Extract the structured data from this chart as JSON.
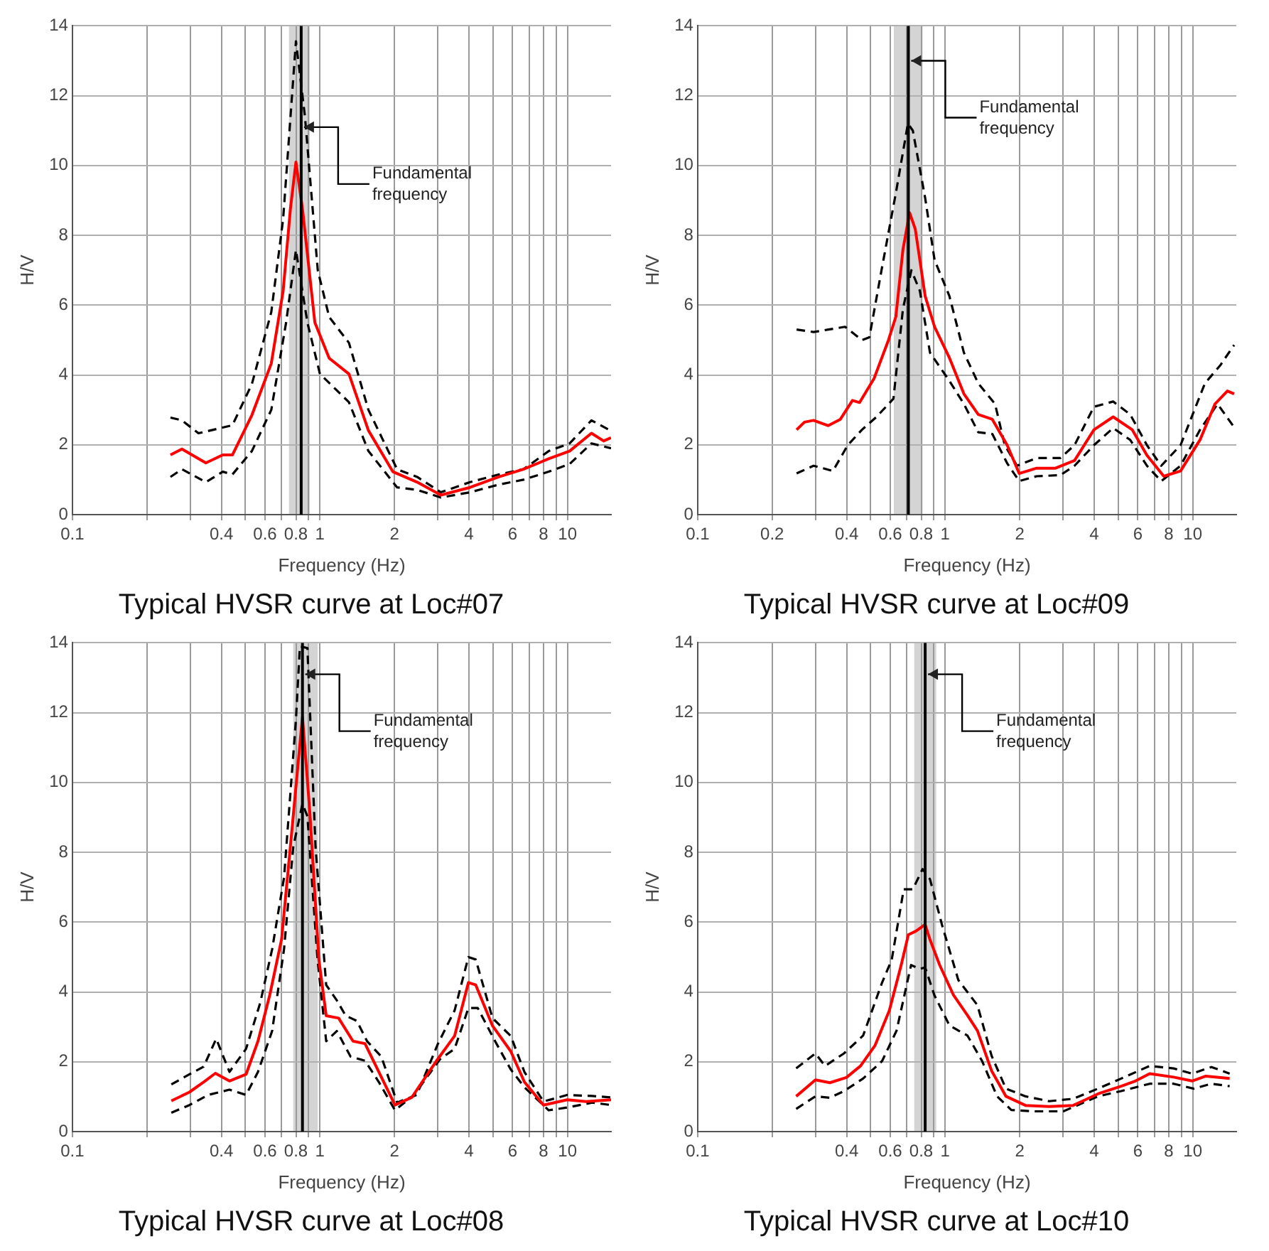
{
  "chart_data": [
    {
      "type": "line",
      "title": "Typical HVSR curve at Loc#07",
      "xlabel": "Frequency (Hz)",
      "ylabel": "H/V",
      "log": "x",
      "grid": true,
      "xlim": [
        0.1,
        15
      ],
      "ylim": [
        0,
        14
      ],
      "yticks": [
        0,
        2,
        4,
        6,
        8,
        10,
        12,
        14
      ],
      "xticks": [
        0.1,
        {
          "value": 0.2,
          "label": null
        },
        {
          "value": 0.3,
          "label": null
        },
        0.4,
        {
          "value": 0.5,
          "label": null
        },
        0.6,
        {
          "value": 0.7,
          "label": null
        },
        0.8,
        {
          "value": 0.9,
          "label": null
        },
        1,
        2,
        {
          "value": 3,
          "label": null
        },
        4,
        {
          "value": 5,
          "label": null
        },
        6,
        {
          "value": 7,
          "label": null
        },
        8,
        {
          "value": 9,
          "label": null
        },
        10
      ],
      "ref_lines": [
        {
          "axis": "x",
          "value": 0.84,
          "color": "#000000"
        }
      ],
      "bands": [
        {
          "axis": "x",
          "from": 0.75,
          "to": 0.91,
          "color": "#d4d4d4"
        }
      ],
      "annotations": [
        {
          "text": "Fundamental frequency",
          "x": 0.84,
          "y": 11.1
        }
      ],
      "series": [
        {
          "color": "#ff0000",
          "line_style": "solid",
          "x": [
            0.249,
            0.277,
            0.346,
            0.405,
            0.443,
            0.531,
            0.636,
            0.71,
            0.76,
            0.8,
            0.85,
            0.954,
            1.09,
            1.31,
            1.57,
            1.97,
            2.47,
            3.08,
            4.04,
            5.28,
            6.64,
            8.4,
            10.2,
            12.5,
            14,
            15
          ],
          "values": [
            1.71,
            1.88,
            1.48,
            1.71,
            1.71,
            2.85,
            4.33,
            6.4,
            8.76,
            10.1,
            8.76,
            5.5,
            4.48,
            4.03,
            2.41,
            1.23,
            0.93,
            0.56,
            0.78,
            1.08,
            1.3,
            1.6,
            1.82,
            2.33,
            2.11,
            2.2
          ]
        },
        {
          "color": "#000000",
          "line_style": "dashed",
          "x": [
            0.249,
            0.277,
            0.323,
            0.443,
            0.531,
            0.636,
            0.71,
            0.8,
            0.87,
            0.98,
            1.09,
            1.31,
            1.57,
            2.05,
            2.47,
            3.08,
            4.04,
            5.28,
            6.64,
            8.4,
            10.2,
            12.5,
            15
          ],
          "values": [
            2.78,
            2.7,
            2.33,
            2.56,
            3.74,
            5.8,
            8.46,
            13.56,
            11.4,
            7.0,
            5.66,
            4.92,
            3.0,
            1.3,
            1.08,
            0.64,
            0.93,
            1.15,
            1.3,
            1.82,
            2.04,
            2.7,
            2.4
          ]
        },
        {
          "color": "#000000",
          "line_style": "dashed",
          "x": [
            0.249,
            0.277,
            0.346,
            0.405,
            0.443,
            0.531,
            0.636,
            0.73,
            0.8,
            0.89,
            1.0,
            1.31,
            1.57,
            2.05,
            2.47,
            3.08,
            4.04,
            5.28,
            6.64,
            8.4,
            10.2,
            12.5,
            15
          ],
          "values": [
            1.08,
            1.3,
            0.93,
            1.23,
            1.15,
            1.82,
            3.0,
            5.5,
            7.58,
            5.5,
            4.03,
            3.22,
            1.82,
            0.78,
            0.71,
            0.49,
            0.64,
            0.86,
            1.0,
            1.23,
            1.45,
            2.04,
            1.9
          ]
        }
      ]
    },
    {
      "type": "line",
      "title": "Typical HVSR curve at Loc#09",
      "xlabel": "Frequency (Hz)",
      "ylabel": "H/V",
      "log": "x",
      "grid": true,
      "xlim": [
        0.1,
        15
      ],
      "ylim": [
        0,
        14
      ],
      "yticks": [
        0,
        2,
        4,
        6,
        8,
        10,
        12,
        14
      ],
      "xticks": [
        0.1,
        0.2,
        {
          "value": 0.3,
          "label": null
        },
        0.4,
        {
          "value": 0.5,
          "label": null
        },
        0.6,
        {
          "value": 0.7,
          "label": null
        },
        0.8,
        {
          "value": 0.9,
          "label": null
        },
        1,
        2,
        {
          "value": 3,
          "label": null
        },
        4,
        {
          "value": 5,
          "label": null
        },
        6,
        {
          "value": 7,
          "label": null
        },
        8,
        {
          "value": 9,
          "label": null
        },
        10
      ],
      "ref_lines": [
        {
          "axis": "x",
          "value": 0.71,
          "color": "#000000"
        }
      ],
      "bands": [
        {
          "axis": "x",
          "from": 0.62,
          "to": 0.81,
          "color": "#d4d4d4"
        }
      ],
      "annotations": [
        {
          "text": "Fundamental frequency",
          "x": 0.71,
          "y": 13
        }
      ],
      "series": [
        {
          "color": "#ff0000",
          "line_style": "solid",
          "x": [
            0.251,
            0.27,
            0.294,
            0.337,
            0.377,
            0.422,
            0.451,
            0.516,
            0.59,
            0.632,
            0.675,
            0.718,
            0.757,
            0.83,
            0.906,
            1.04,
            1.19,
            1.36,
            1.55,
            1.78,
            1.99,
            2.34,
            2.79,
            3.33,
            3.99,
            4.77,
            5.7,
            6.53,
            7.64,
            8.93,
            10.7,
            12.3,
            13.8,
            14.7
          ],
          "values": [
            2.43,
            2.65,
            2.7,
            2.55,
            2.73,
            3.27,
            3.21,
            3.9,
            5.0,
            5.67,
            7.59,
            8.65,
            8.18,
            6.26,
            5.38,
            4.49,
            3.46,
            2.87,
            2.73,
            1.99,
            1.18,
            1.33,
            1.33,
            1.55,
            2.43,
            2.8,
            2.43,
            1.7,
            1.1,
            1.25,
            2.14,
            3.17,
            3.54,
            3.46
          ]
        },
        {
          "color": "#000000",
          "line_style": "dashed",
          "x": [
            0.251,
            0.294,
            0.337,
            0.394,
            0.461,
            0.494,
            0.553,
            0.632,
            0.707,
            0.74,
            0.83,
            0.906,
            1.04,
            1.19,
            1.36,
            1.59,
            1.74,
            1.95,
            2.34,
            2.92,
            3.33,
            3.99,
            4.77,
            5.59,
            6.53,
            7.46,
            8.93,
            11.2,
            12.9,
            14.7
          ],
          "values": [
            5.3,
            5.23,
            5.3,
            5.38,
            5.0,
            5.08,
            7.0,
            9.21,
            11.2,
            11.0,
            9.07,
            7.29,
            6.26,
            4.64,
            3.76,
            3.17,
            1.99,
            1.4,
            1.62,
            1.62,
            1.99,
            3.09,
            3.24,
            2.87,
            1.99,
            1.4,
            1.99,
            3.76,
            4.27,
            4.86
          ]
        },
        {
          "color": "#000000",
          "line_style": "dashed",
          "x": [
            0.251,
            0.294,
            0.352,
            0.404,
            0.461,
            0.528,
            0.618,
            0.675,
            0.73,
            0.79,
            0.868,
            1.04,
            1.19,
            1.36,
            1.55,
            1.78,
            1.99,
            2.34,
            2.92,
            3.33,
            3.99,
            4.77,
            5.59,
            6.53,
            7.46,
            8.93,
            10.7,
            12.6,
            14.7
          ],
          "values": [
            1.18,
            1.4,
            1.25,
            1.99,
            2.43,
            2.8,
            3.32,
            5.89,
            7.0,
            6.41,
            4.64,
            3.83,
            3.17,
            2.36,
            2.31,
            1.47,
            0.96,
            1.1,
            1.13,
            1.4,
            1.99,
            2.48,
            2.14,
            1.4,
            0.96,
            1.4,
            2.43,
            3.17,
            2.5
          ]
        }
      ]
    },
    {
      "type": "line",
      "title": "Typical HVSR curve at Loc#08",
      "xlabel": "Frequency (Hz)",
      "ylabel": "H/V",
      "log": "x",
      "grid": true,
      "xlim": [
        0.1,
        15
      ],
      "ylim": [
        0,
        14
      ],
      "yticks": [
        0,
        2,
        4,
        6,
        8,
        10,
        12,
        14
      ],
      "xticks": [
        0.1,
        {
          "value": 0.2,
          "label": null
        },
        {
          "value": 0.3,
          "label": null
        },
        0.4,
        {
          "value": 0.5,
          "label": null
        },
        0.6,
        {
          "value": 0.7,
          "label": null
        },
        0.8,
        {
          "value": 0.9,
          "label": null
        },
        1,
        2,
        {
          "value": 3,
          "label": null
        },
        4,
        {
          "value": 5,
          "label": null
        },
        6,
        {
          "value": 7,
          "label": null
        },
        8,
        {
          "value": 9,
          "label": null
        },
        10
      ],
      "ref_lines": [
        {
          "axis": "x",
          "value": 0.85,
          "color": "#000000"
        }
      ],
      "bands": [
        {
          "axis": "x",
          "from": 0.78,
          "to": 0.98,
          "color": "#d4d4d4"
        }
      ],
      "annotations": [
        {
          "text": "Fundamental frequency",
          "x": 0.85,
          "y": 13.1
        }
      ],
      "series": [
        {
          "color": "#ff0000",
          "line_style": "solid",
          "x": [
            0.251,
            0.297,
            0.339,
            0.378,
            0.431,
            0.503,
            0.562,
            0.627,
            0.7,
            0.766,
            0.85,
            0.91,
            0.99,
            1.06,
            1.19,
            1.36,
            1.52,
            1.73,
            2.01,
            2.35,
            2.94,
            3.5,
            3.98,
            4.26,
            4.98,
            5.9,
            6.7,
            8.0,
            9.97,
            11.9,
            15
          ],
          "values": [
            0.88,
            1.13,
            1.42,
            1.67,
            1.45,
            1.64,
            2.59,
            3.91,
            5.51,
            8.44,
            11.88,
            9.17,
            4.93,
            3.32,
            3.25,
            2.59,
            2.52,
            1.71,
            0.76,
            0.98,
            2.0,
            2.74,
            4.27,
            4.2,
            3.03,
            2.3,
            1.42,
            0.76,
            0.91,
            0.86,
            0.91
          ]
        },
        {
          "color": "#000000",
          "line_style": "dashed",
          "x": [
            0.251,
            0.297,
            0.339,
            0.381,
            0.431,
            0.503,
            0.574,
            0.641,
            0.716,
            0.8,
            0.83,
            0.89,
            0.96,
            1.06,
            1.17,
            1.27,
            1.41,
            1.55,
            1.77,
            2.05,
            2.46,
            3.0,
            3.5,
            3.98,
            4.26,
            4.98,
            5.9,
            6.7,
            8.0,
            9.97,
            12.6,
            15
          ],
          "values": [
            1.35,
            1.64,
            1.86,
            2.66,
            1.71,
            2.37,
            3.69,
            5.22,
            7.27,
            11.8,
            13.9,
            13.85,
            8.15,
            4.2,
            3.76,
            3.32,
            3.17,
            2.59,
            2.15,
            0.83,
            1.05,
            2.52,
            3.47,
            5.0,
            4.93,
            3.25,
            2.74,
            1.71,
            0.86,
            1.05,
            1.02,
            0.98
          ]
        },
        {
          "color": "#000000",
          "line_style": "dashed",
          "x": [
            0.251,
            0.297,
            0.354,
            0.431,
            0.503,
            0.562,
            0.641,
            0.716,
            0.78,
            0.85,
            0.89,
            0.978,
            1.06,
            1.17,
            1.33,
            1.52,
            1.73,
            2.01,
            2.4,
            3.06,
            3.5,
            3.98,
            4.34,
            5.1,
            5.9,
            6.7,
            8.4,
            9.97,
            12.6,
            15
          ],
          "values": [
            0.54,
            0.76,
            1.05,
            1.2,
            1.05,
            1.71,
            2.88,
            5.22,
            8.15,
            9.39,
            9.03,
            4.93,
            2.59,
            2.88,
            2.15,
            2.03,
            1.42,
            0.61,
            1.05,
            2.08,
            2.37,
            3.54,
            3.54,
            2.59,
            1.78,
            1.27,
            0.61,
            0.69,
            0.83,
            0.76
          ]
        }
      ]
    },
    {
      "type": "line",
      "title": "Typical HVSR curve at Loc#10",
      "xlabel": "Frequency (Hz)",
      "ylabel": "H/V",
      "log": "x",
      "grid": true,
      "xlim": [
        0.1,
        15
      ],
      "ylim": [
        0,
        14
      ],
      "yticks": [
        0,
        2,
        4,
        6,
        8,
        10,
        12,
        14
      ],
      "xticks": [
        0.1,
        {
          "value": 0.2,
          "label": null
        },
        {
          "value": 0.3,
          "label": null
        },
        0.4,
        {
          "value": 0.5,
          "label": null
        },
        0.6,
        {
          "value": 0.7,
          "label": null
        },
        0.8,
        {
          "value": 0.9,
          "label": null
        },
        1,
        2,
        {
          "value": 3,
          "label": null
        },
        4,
        {
          "value": 5,
          "label": null
        },
        6,
        {
          "value": 7,
          "label": null
        },
        8,
        {
          "value": 9,
          "label": null
        },
        10
      ],
      "ref_lines": [
        {
          "axis": "x",
          "value": 0.83,
          "color": "#000000"
        }
      ],
      "bands": [
        {
          "axis": "x",
          "from": 0.75,
          "to": 0.92,
          "color": "#d4d4d4"
        }
      ],
      "annotations": [
        {
          "text": "Fundamental frequency",
          "x": 0.83,
          "y": 13.1
        }
      ],
      "series": [
        {
          "color": "#ff0000",
          "line_style": "solid",
          "x": [
            0.25,
            0.299,
            0.342,
            0.399,
            0.455,
            0.52,
            0.595,
            0.664,
            0.71,
            0.76,
            0.83,
            0.868,
            0.95,
            1.08,
            1.23,
            1.35,
            1.54,
            1.76,
            2.11,
            2.63,
            3.29,
            4.14,
            5.14,
            5.87,
            6.7,
            8.37,
            9.94,
            11.3,
            14.1
          ],
          "values": [
            1.01,
            1.48,
            1.4,
            1.55,
            1.88,
            2.46,
            3.47,
            4.77,
            5.64,
            5.74,
            5.93,
            5.5,
            4.77,
            3.91,
            3.33,
            2.89,
            1.74,
            1.01,
            0.75,
            0.72,
            0.75,
            1.08,
            1.3,
            1.45,
            1.66,
            1.56,
            1.45,
            1.59,
            1.52
          ]
        },
        {
          "color": "#000000",
          "line_style": "dashed",
          "x": [
            0.25,
            0.299,
            0.327,
            0.39,
            0.466,
            0.556,
            0.608,
            0.68,
            0.74,
            0.81,
            0.868,
            0.97,
            1.13,
            1.35,
            1.54,
            1.76,
            2.11,
            2.63,
            3.29,
            4.14,
            5.14,
            6.7,
            8.37,
            9.94,
            11.9,
            14.1
          ],
          "values": [
            1.81,
            2.24,
            1.88,
            2.24,
            2.75,
            4.27,
            4.92,
            6.94,
            6.94,
            7.52,
            7.23,
            5.93,
            4.34,
            3.62,
            2.17,
            1.23,
            1.01,
            0.87,
            0.94,
            1.23,
            1.52,
            1.88,
            1.81,
            1.66,
            1.85,
            1.66
          ]
        },
        {
          "color": "#000000",
          "line_style": "dashed",
          "x": [
            0.25,
            0.299,
            0.342,
            0.39,
            0.466,
            0.556,
            0.636,
            0.728,
            0.79,
            0.83,
            0.904,
            1.04,
            1.23,
            1.41,
            1.62,
            1.85,
            2.3,
            3.0,
            4.14,
            5.14,
            6.7,
            8.37,
            10.1,
            11.9,
            14.1
          ],
          "values": [
            0.65,
            1.01,
            0.97,
            1.16,
            1.52,
            2.02,
            2.89,
            4.77,
            4.66,
            4.7,
            3.91,
            3.04,
            2.75,
            2.02,
            1.01,
            0.62,
            0.58,
            0.58,
            1.01,
            1.16,
            1.37,
            1.37,
            1.23,
            1.37,
            1.3
          ]
        }
      ]
    }
  ]
}
